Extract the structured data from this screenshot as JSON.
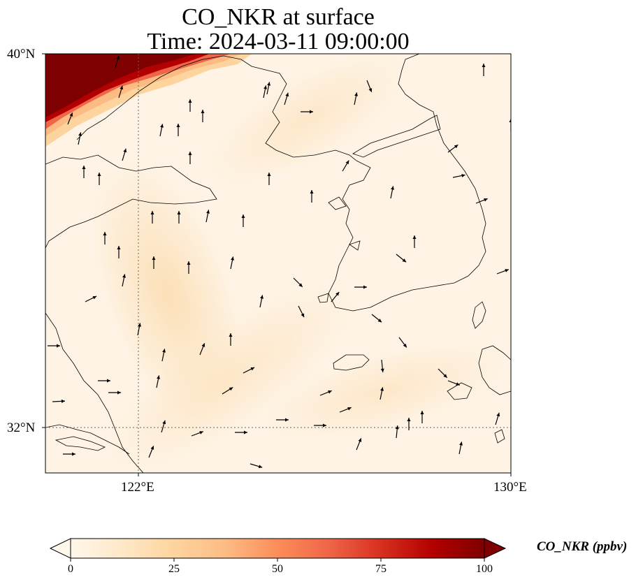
{
  "title": {
    "line1": "CO_NKR at surface",
    "line2": "Time: 2024-03-11 09:00:00"
  },
  "map": {
    "variable": "CO_NKR",
    "level": "surface",
    "lon_range": [
      120.4,
      130
    ],
    "lat_range": [
      31.2,
      40
    ],
    "colormap": "OrRd",
    "background_color": "#fef3e4",
    "x_tick_labels": [
      "122°E",
      "130°E"
    ],
    "y_tick_labels": [
      "40°N",
      "32°N"
    ],
    "gridline_lon": 122,
    "gridline_lat": 32,
    "coastline_color": "#000000",
    "high_concentration_region": "north-west corner",
    "wind_vectors_shown": true
  },
  "colorbar": {
    "label": "CO_NKR (ppbv)",
    "ticks": [
      "0",
      "25",
      "50",
      "75",
      "100"
    ],
    "min": 0,
    "max": 100,
    "extend": "both",
    "colors": [
      "#fff7ec",
      "#fee8c8",
      "#fdd49e",
      "#fdbb84",
      "#fc8d59",
      "#ef6548",
      "#d7301f",
      "#b30000",
      "#7f0000"
    ]
  }
}
